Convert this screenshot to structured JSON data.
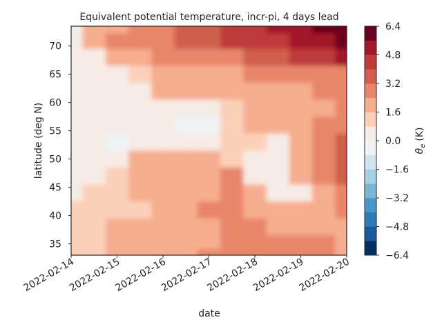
{
  "chart_data": {
    "type": "heatmap",
    "title": "Equivalent potential temperature, incr-pi, 4 days lead",
    "xlabel": "date",
    "ylabel": "latitude (deg N)",
    "x_ticks": [
      "2022-02-14",
      "2022-02-15",
      "2022-02-16",
      "2022-02-17",
      "2022-02-18",
      "2022-02-19",
      "2022-02-20"
    ],
    "x_range": [
      "2022-02-14",
      "2022-02-20"
    ],
    "y_ticks": [
      35,
      40,
      45,
      50,
      55,
      60,
      65,
      70
    ],
    "y_range": [
      33,
      73.5
    ],
    "colorbar": {
      "label_base": "θ",
      "label_sub": "e",
      "label_unit": "(K)",
      "ticks": [
        "6.4",
        "4.8",
        "3.2",
        "1.6",
        "0.0",
        "−1.6",
        "−3.2",
        "−4.8",
        "−6.4"
      ],
      "range": [
        -6.4,
        6.4
      ],
      "levels": [
        -6.4,
        -5.6,
        -4.8,
        -4.0,
        -3.2,
        -2.4,
        -1.6,
        -0.8,
        0.0,
        0.8,
        1.6,
        2.4,
        3.2,
        4.0,
        4.8,
        5.6,
        6.4
      ],
      "colors": [
        "#053061",
        "#1b5a9c",
        "#2f79b5",
        "#4a98c9",
        "#7bb6d6",
        "#a7cfe4",
        "#d0e4ef",
        "#eef3f6",
        "#f7ebe5",
        "#fbd0b9",
        "#f7ad8f",
        "#e8866a",
        "#d05f4e",
        "#bd3b3a",
        "#a2182a",
        "#6c011f"
      ]
    },
    "x_grid_days": [
      0,
      0.5,
      1,
      1.5,
      2,
      2.5,
      3,
      3.5,
      4,
      4.5,
      5,
      5.5,
      6
    ],
    "y_grid_lat": [
      73.5,
      71,
      68,
      65,
      62,
      59,
      56,
      53,
      50,
      47,
      44,
      41,
      38,
      35,
      33
    ],
    "values": [
      [
        0.3,
        1.9,
        2.3,
        2.7,
        2.9,
        3.3,
        3.9,
        4.2,
        4.3,
        4.9,
        5.3,
        5.8,
        6.0
      ],
      [
        0.3,
        1.9,
        2.4,
        2.6,
        2.9,
        3.4,
        3.9,
        4.1,
        4.2,
        4.6,
        5.1,
        5.4,
        5.8
      ],
      [
        0.3,
        0.5,
        1.9,
        2.3,
        2.5,
        2.7,
        2.9,
        3.0,
        3.3,
        3.6,
        4.1,
        4.7,
        4.9
      ],
      [
        0.3,
        0.4,
        0.6,
        0.8,
        1.8,
        1.9,
        2.1,
        2.3,
        2.5,
        2.7,
        2.6,
        2.5,
        2.6
      ],
      [
        0.3,
        0.4,
        0.5,
        0.6,
        1.7,
        1.8,
        2.0,
        2.0,
        1.9,
        1.9,
        2.2,
        2.4,
        2.5
      ],
      [
        0.3,
        0.4,
        0.5,
        0.6,
        0.7,
        0.5,
        0.7,
        1.2,
        1.7,
        1.8,
        1.8,
        2.2,
        2.8
      ],
      [
        0.3,
        0.4,
        0.4,
        0.5,
        0.6,
        -0.2,
        -0.1,
        1.0,
        1.6,
        1.7,
        1.9,
        2.4,
        2.8
      ],
      [
        0.3,
        0.3,
        -0.1,
        0.4,
        0.6,
        0.4,
        0.5,
        1.0,
        1.4,
        0.6,
        1.8,
        2.5,
        3.3
      ],
      [
        0.3,
        0.4,
        0.6,
        1.6,
        1.8,
        1.9,
        1.8,
        1.3,
        0.5,
        0.6,
        1.7,
        2.8,
        3.6
      ],
      [
        0.4,
        0.5,
        1.0,
        1.6,
        1.8,
        2.0,
        2.2,
        2.4,
        0.5,
        0.5,
        1.7,
        2.5,
        3.3
      ],
      [
        0.6,
        0.8,
        1.0,
        1.6,
        1.7,
        2.1,
        2.3,
        2.6,
        1.7,
        0.5,
        0.7,
        2.1,
        2.6
      ],
      [
        0.8,
        1.2,
        1.2,
        1.4,
        1.8,
        2.3,
        2.6,
        2.5,
        2.0,
        1.7,
        1.8,
        2.1,
        2.5
      ],
      [
        0.9,
        1.4,
        1.8,
        2.0,
        1.9,
        2.1,
        2.3,
        2.5,
        2.5,
        2.1,
        1.9,
        2.1,
        2.3
      ],
      [
        0.9,
        1.3,
        1.6,
        1.8,
        1.9,
        2.1,
        2.3,
        2.5,
        2.7,
        2.8,
        2.7,
        2.4,
        2.2
      ],
      [
        1.0,
        1.4,
        1.7,
        1.8,
        2.0,
        2.1,
        2.4,
        2.5,
        2.9,
        3.0,
        3.0,
        2.5,
        2.2
      ]
    ]
  }
}
